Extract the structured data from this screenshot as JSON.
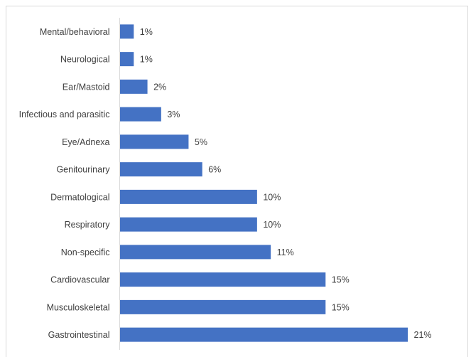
{
  "chart_data": {
    "type": "bar",
    "orientation": "horizontal",
    "title": "",
    "xlabel": "",
    "ylabel": "",
    "categories": [
      "Mental/behavioral",
      "Neurological",
      "Ear/Mastoid",
      "Infectious and parasitic",
      "Eye/Adnexa",
      "Genitourinary",
      "Dermatological",
      "Respiratory",
      "Non-specific",
      "Cardiovascular",
      "Musculoskeletal",
      "Gastrointestinal"
    ],
    "values": [
      1,
      1,
      2,
      3,
      5,
      6,
      10,
      10,
      11,
      15,
      15,
      21
    ],
    "value_labels": [
      "1%",
      "1%",
      "2%",
      "3%",
      "5%",
      "6%",
      "10%",
      "10%",
      "11%",
      "15%",
      "15%",
      "21%"
    ],
    "unit": "%",
    "xlim": [
      0,
      21
    ],
    "grid": false,
    "legend": "none",
    "bar_color": "#4472c4"
  }
}
